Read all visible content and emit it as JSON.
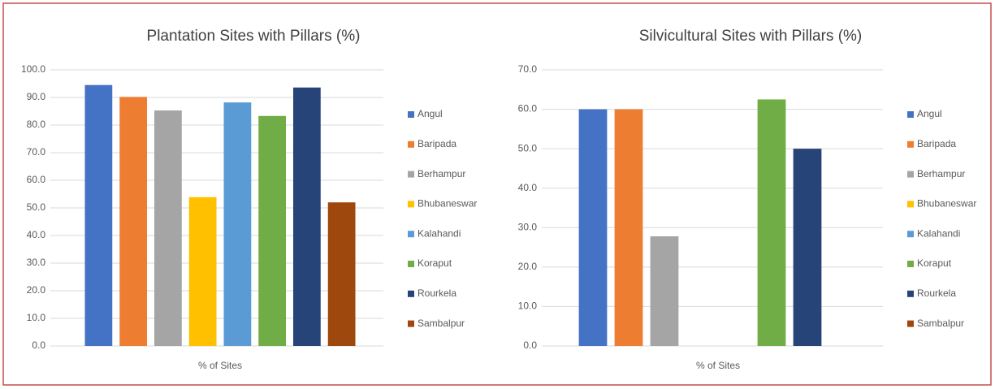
{
  "chart_data": [
    {
      "type": "bar",
      "title": "Plantation Sites with Pillars (%)",
      "categories": [
        "% of Sites"
      ],
      "ylim": [
        0,
        100
      ],
      "yticks": [
        {
          "value": 0,
          "label": "0.0"
        },
        {
          "value": 10,
          "label": "10.0"
        },
        {
          "value": 20,
          "label": "20.0"
        },
        {
          "value": 30,
          "label": "30.0"
        },
        {
          "value": 40,
          "label": "40.0"
        },
        {
          "value": 50,
          "label": "50.0"
        },
        {
          "value": 60,
          "label": "60.0"
        },
        {
          "value": 70,
          "label": "70.0"
        },
        {
          "value": 80,
          "label": "80.0"
        },
        {
          "value": 90,
          "label": "90.0"
        },
        {
          "value": 100,
          "label": "100.0"
        }
      ],
      "grid": true,
      "legend": "right",
      "series": [
        {
          "name": "Angul",
          "color": "#4472c4",
          "values": [
            94.5
          ]
        },
        {
          "name": "Baripada",
          "color": "#ed7d31",
          "values": [
            90.2
          ]
        },
        {
          "name": "Berhampur",
          "color": "#a5a5a5",
          "values": [
            85.3
          ]
        },
        {
          "name": "Bhubaneswar",
          "color": "#ffc000",
          "values": [
            53.9
          ]
        },
        {
          "name": "Kalahandi",
          "color": "#5b9bd5",
          "values": [
            88.2
          ]
        },
        {
          "name": "Koraput",
          "color": "#70ad47",
          "values": [
            83.3
          ]
        },
        {
          "name": "Rourkela",
          "color": "#264478",
          "values": [
            93.6
          ]
        },
        {
          "name": "Sambalpur",
          "color": "#9e480e",
          "values": [
            52.0
          ]
        }
      ]
    },
    {
      "type": "bar",
      "title": "Silvicultural Sites with Pillars (%)",
      "categories": [
        "% of Sites"
      ],
      "ylim": [
        0,
        70
      ],
      "yticks": [
        {
          "value": 0,
          "label": "0.0"
        },
        {
          "value": 10,
          "label": "10.0"
        },
        {
          "value": 20,
          "label": "20.0"
        },
        {
          "value": 30,
          "label": "30.0"
        },
        {
          "value": 40,
          "label": "40.0"
        },
        {
          "value": 50,
          "label": "50.0"
        },
        {
          "value": 60,
          "label": "60.0"
        },
        {
          "value": 70,
          "label": "70.0"
        }
      ],
      "grid": true,
      "legend": "right",
      "series": [
        {
          "name": "Angul",
          "color": "#4472c4",
          "values": [
            60.0
          ]
        },
        {
          "name": "Baripada",
          "color": "#ed7d31",
          "values": [
            60.0
          ]
        },
        {
          "name": "Berhampur",
          "color": "#a5a5a5",
          "values": [
            27.8
          ]
        },
        {
          "name": "Bhubaneswar",
          "color": "#ffc000",
          "values": [
            0
          ]
        },
        {
          "name": "Kalahandi",
          "color": "#5b9bd5",
          "values": [
            0
          ]
        },
        {
          "name": "Koraput",
          "color": "#70ad47",
          "values": [
            62.5
          ]
        },
        {
          "name": "Rourkela",
          "color": "#264478",
          "values": [
            50.0
          ]
        },
        {
          "name": "Sambalpur",
          "color": "#9e480e",
          "values": [
            0
          ]
        }
      ]
    }
  ]
}
